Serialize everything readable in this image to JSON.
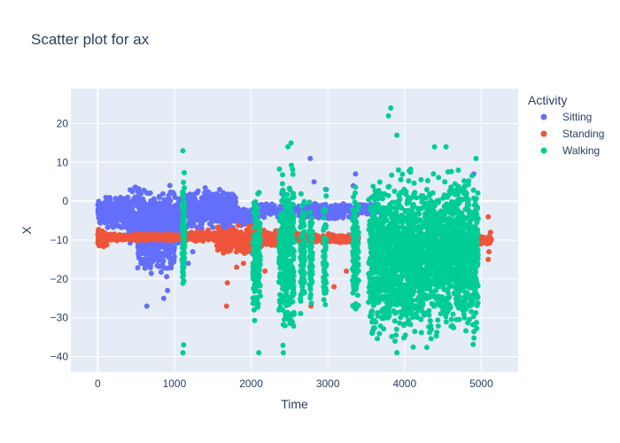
{
  "chart_data": {
    "type": "scatter",
    "title": "Scatter plot for ax",
    "xlabel": "Time",
    "ylabel": "X",
    "xlim": [
      -350,
      5480
    ],
    "ylim": [
      -44,
      29
    ],
    "x_ticks": [
      0,
      1000,
      2000,
      3000,
      4000,
      5000
    ],
    "y_ticks": [
      -40,
      -30,
      -20,
      -10,
      0,
      10,
      20
    ],
    "x_tick_labels": [
      "0",
      "1000",
      "2000",
      "3000",
      "4000",
      "5000"
    ],
    "y_tick_labels": [
      "−40",
      "−30",
      "−20",
      "−10",
      "0",
      "10",
      "20"
    ],
    "grid": true,
    "legend": {
      "title": "Activity",
      "position": "right"
    },
    "colors": {
      "plot_background": "#E5ECF6",
      "grid": "#ffffff",
      "text": "#2a3f5f"
    },
    "series": [
      {
        "name": "Sitting",
        "color": "#636EFA",
        "segments": [
          {
            "x_range": [
              0,
              100
            ],
            "y_center": -3,
            "y_spread": 3.5,
            "n": 90
          },
          {
            "x_range": [
              100,
              400
            ],
            "y_center": -3,
            "y_spread": 5,
            "n": 260
          },
          {
            "x_range": [
              400,
              1100
            ],
            "y_center": -5,
            "y_spread": 10,
            "n": 620
          },
          {
            "x_range": [
              520,
              1000
            ],
            "y_center": -13,
            "y_spread": 7,
            "n": 220
          },
          {
            "x_range": [
              1150,
              1800
            ],
            "y_center": -2,
            "y_spread": 6,
            "n": 520
          },
          {
            "x_range": [
              1800,
              2050
            ],
            "y_center": -4,
            "y_spread": 3,
            "n": 150
          },
          {
            "x_range": [
              2050,
              3400
            ],
            "y_center": -2.5,
            "y_spread": 2.5,
            "n": 420
          },
          {
            "x_range": [
              3400,
              3650
            ],
            "y_center": -2,
            "y_spread": 2,
            "n": 80
          }
        ],
        "points": [
          [
            640,
            -27
          ],
          [
            860,
            -25
          ],
          [
            910,
            -23
          ],
          [
            1180,
            -16
          ],
          [
            1240,
            -13
          ],
          [
            2770,
            11
          ],
          [
            2820,
            5
          ],
          [
            2980,
            3
          ],
          [
            3360,
            7
          ],
          [
            3330,
            4
          ],
          [
            2400,
            2
          ],
          [
            4900,
            7
          ]
        ]
      },
      {
        "name": "Standing",
        "color": "#EF553B",
        "segments": [
          {
            "x_range": [
              0,
              120
            ],
            "y_center": -9.5,
            "y_spread": 2.5,
            "n": 80
          },
          {
            "x_range": [
              120,
              1150
            ],
            "y_center": -9.3,
            "y_spread": 1.2,
            "n": 420
          },
          {
            "x_range": [
              1150,
              1550
            ],
            "y_center": -9,
            "y_spread": 1.8,
            "n": 140
          },
          {
            "x_range": [
              1550,
              2100
            ],
            "y_center": -10,
            "y_spread": 4.5,
            "n": 300
          },
          {
            "x_range": [
              2100,
              2500
            ],
            "y_center": -9.5,
            "y_spread": 3,
            "n": 180
          },
          {
            "x_range": [
              2500,
              3400
            ],
            "y_center": -9.5,
            "y_spread": 1.5,
            "n": 260
          },
          {
            "x_range": [
              4900,
              5130
            ],
            "y_center": -9.8,
            "y_spread": 1.5,
            "n": 90
          }
        ],
        "points": [
          [
            1690,
            -21
          ],
          [
            1680,
            -27
          ],
          [
            1810,
            -17
          ],
          [
            2060,
            -22
          ],
          [
            2180,
            -18
          ],
          [
            2780,
            -27
          ],
          [
            3080,
            -22
          ],
          [
            3240,
            -18
          ],
          [
            5090,
            -4
          ],
          [
            5100,
            -13
          ],
          [
            5120,
            -8
          ],
          [
            5090,
            -15
          ],
          [
            1900,
            -16
          ],
          [
            2390,
            -21
          ]
        ]
      },
      {
        "name": "Walking",
        "color": "#00CC96",
        "segments": [
          {
            "x_range": [
              1100,
              1130
            ],
            "y_center": -8,
            "y_spread": 18,
            "n": 110
          },
          {
            "x_range": [
              2020,
              2120
            ],
            "y_center": -14,
            "y_spread": 20,
            "n": 170
          },
          {
            "x_range": [
              2360,
              2560
            ],
            "y_center": -13,
            "y_spread": 26,
            "n": 360
          },
          {
            "x_range": [
              2640,
              2700
            ],
            "y_center": -13,
            "y_spread": 20,
            "n": 110
          },
          {
            "x_range": [
              2760,
              2800
            ],
            "y_center": -13,
            "y_spread": 20,
            "n": 80
          },
          {
            "x_range": [
              2940,
              2980
            ],
            "y_center": -13,
            "y_spread": 20,
            "n": 70
          },
          {
            "x_range": [
              3320,
              3400
            ],
            "y_center": -13,
            "y_spread": 22,
            "n": 120
          },
          {
            "x_range": [
              3530,
              4960
            ],
            "y_center": -14,
            "y_spread": 25,
            "n": 2300
          }
        ],
        "points": [
          [
            1110,
            13
          ],
          [
            1110,
            -39
          ],
          [
            1120,
            -37
          ],
          [
            3820,
            24
          ],
          [
            3790,
            22
          ],
          [
            3900,
            17
          ],
          [
            2520,
            15
          ],
          [
            2480,
            14
          ],
          [
            3900,
            -39
          ],
          [
            2420,
            -39
          ],
          [
            2100,
            -39
          ],
          [
            4930,
            11
          ],
          [
            4540,
            14
          ],
          [
            4390,
            14
          ],
          [
            4700,
            8
          ]
        ]
      }
    ]
  }
}
